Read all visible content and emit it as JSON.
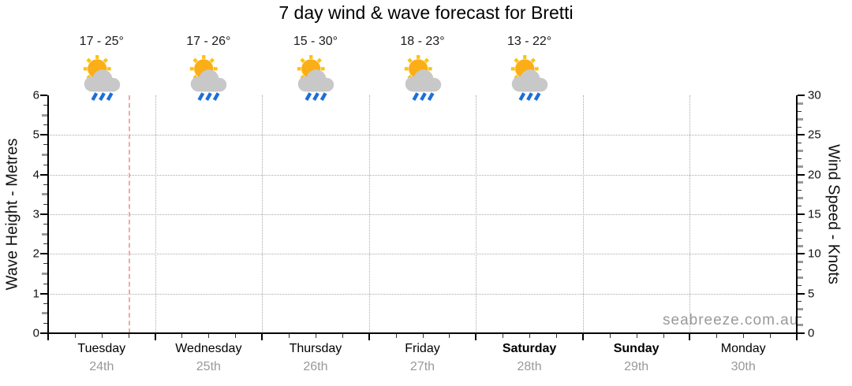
{
  "title": "7 day wind & wave forecast for Bretti",
  "watermark": "seabreeze.com.au",
  "axes": {
    "left_label": "Wave Height - Metres",
    "right_label": "Wind Speed - Knots",
    "left_ticks": [
      0,
      1,
      2,
      3,
      4,
      5,
      6
    ],
    "right_ticks": [
      0,
      5,
      10,
      15,
      20,
      25,
      30
    ]
  },
  "days": [
    {
      "name": "Tuesday",
      "date": "24th",
      "temp_label": "17 - 25°",
      "icon": "sun-cloud-showers-icon",
      "weekend": false
    },
    {
      "name": "Wednesday",
      "date": "25th",
      "temp_label": "17 - 26°",
      "icon": "sun-cloud-showers-icon",
      "weekend": false
    },
    {
      "name": "Thursday",
      "date": "26th",
      "temp_label": "15 - 30°",
      "icon": "sun-cloud-showers-icon",
      "weekend": false
    },
    {
      "name": "Friday",
      "date": "27th",
      "temp_label": "18 - 23°",
      "icon": "sun-cloud-showers-icon",
      "weekend": false
    },
    {
      "name": "Saturday",
      "date": "28th",
      "temp_label": "13 - 22°",
      "icon": "sun-cloud-showers-icon",
      "weekend": true
    },
    {
      "name": "Sunday",
      "date": "29th",
      "temp_label": null,
      "icon": null,
      "weekend": true
    },
    {
      "name": "Monday",
      "date": "30th",
      "temp_label": null,
      "icon": null,
      "weekend": false
    }
  ],
  "now_marker": {
    "day_index": 0,
    "fraction_of_day": 0.75
  },
  "colors": {
    "grid": "#aaaaaa",
    "now_line": "#f2a7a7",
    "axis": "#000000",
    "minor_tick": "#333333",
    "half_tick": "#999999",
    "date_text": "#999999",
    "watermark": "#9a9a9a",
    "sun": "#fbae17",
    "sun_rays": "#ffc20e",
    "cloud": "#c8c8c8",
    "rain": "#1c6fd6"
  },
  "chart_data": {
    "type": "line",
    "title": "7 day wind & wave forecast for Bretti",
    "x_categories": [
      "Tuesday 24th",
      "Wednesday 25th",
      "Thursday 26th",
      "Friday 27th",
      "Saturday 28th",
      "Sunday 29th",
      "Monday 30th"
    ],
    "y_left_axis": {
      "label": "Wave Height - Metres",
      "range": [
        0,
        6
      ],
      "ticks": [
        0,
        1,
        2,
        3,
        4,
        5,
        6
      ]
    },
    "y_right_axis": {
      "label": "Wind Speed - Knots",
      "range": [
        0,
        30
      ],
      "ticks": [
        0,
        5,
        10,
        15,
        20,
        25,
        30
      ]
    },
    "series": [],
    "grid": "dotted horizontal at whole metres, dotted vertical at day boundaries",
    "legend": "none",
    "day_annotations": [
      {
        "day": "Tuesday",
        "date": "24th",
        "temp_min_c": 17,
        "temp_max_c": 25,
        "icon": "sun-cloud-showers"
      },
      {
        "day": "Wednesday",
        "date": "25th",
        "temp_min_c": 17,
        "temp_max_c": 26,
        "icon": "sun-cloud-showers"
      },
      {
        "day": "Thursday",
        "date": "26th",
        "temp_min_c": 15,
        "temp_max_c": 30,
        "icon": "sun-cloud-showers"
      },
      {
        "day": "Friday",
        "date": "27th",
        "temp_min_c": 18,
        "temp_max_c": 23,
        "icon": "sun-cloud-showers"
      },
      {
        "day": "Saturday",
        "date": "28th",
        "temp_min_c": 13,
        "temp_max_c": 22,
        "icon": "sun-cloud-showers"
      },
      {
        "day": "Sunday",
        "date": "29th"
      },
      {
        "day": "Monday",
        "date": "30th"
      }
    ]
  }
}
